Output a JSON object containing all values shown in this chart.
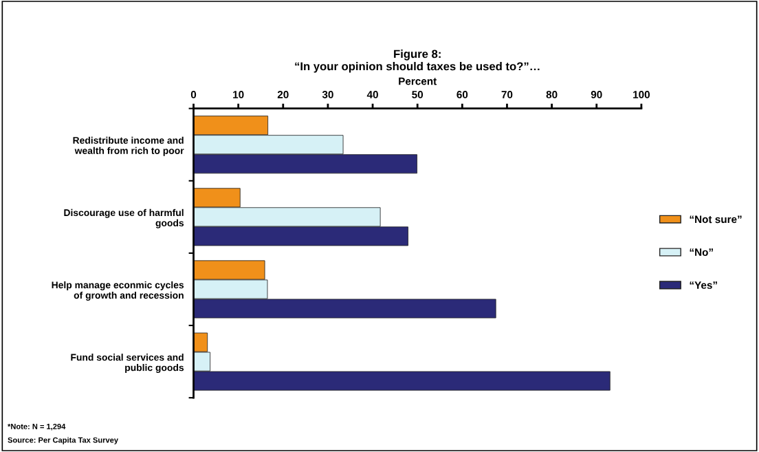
{
  "chart_data": {
    "type": "bar",
    "orientation": "horizontal",
    "title": "Figure 8:\n“In your opinion should taxes be used to?”…",
    "xlabel": "Percent",
    "categories": [
      "Redistribute income and\nwealth from rich to poor",
      "Discourage use of harmful\ngoods",
      "Help manage econmic cycles\nof growth and recession",
      "Fund social services and\npublic goods"
    ],
    "series": [
      {
        "name": "“Not sure”",
        "color": "#f0901a",
        "values": [
          16.6,
          10.4,
          15.9,
          3.1
        ]
      },
      {
        "name": "“No”",
        "color": "#d6f1f6",
        "values": [
          33.4,
          41.7,
          16.5,
          3.7
        ]
      },
      {
        "name": "“Yes”",
        "color": "#2b2a78",
        "values": [
          49.9,
          47.9,
          67.5,
          93.0
        ]
      }
    ],
    "xlim": [
      0,
      100
    ],
    "xticks": [
      0,
      10,
      20,
      30,
      40,
      50,
      60,
      70,
      80,
      90,
      100
    ],
    "grid": false,
    "legend": "right",
    "annotations": [
      "*Note: N = 1,294",
      "Source: Per Capita Tax Survey"
    ]
  }
}
